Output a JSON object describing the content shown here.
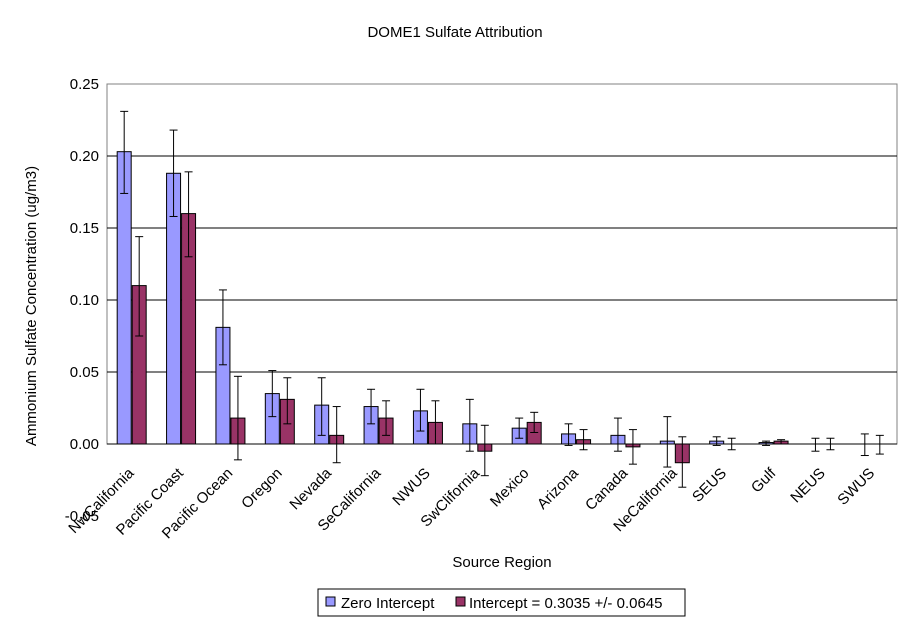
{
  "chart_data": {
    "type": "bar",
    "title": "DOME1 Sulfate Attribution",
    "xlabel": "Source Region",
    "ylabel": "Ammonium Sulfate Concentration (ug/m3)",
    "ylim": [
      -0.05,
      0.25
    ],
    "yticks": [
      "-0.05",
      "0.00",
      "0.05",
      "0.10",
      "0.15",
      "0.20",
      "0.25"
    ],
    "yticks_values": [
      -0.05,
      0.0,
      0.05,
      0.1,
      0.15,
      0.2,
      0.25
    ],
    "grid": true,
    "legend_position": "bottom",
    "categories": [
      "NwCalifornia",
      "Pacific Coast",
      "Pacific Ocean",
      "Oregon",
      "Nevada",
      "SeCalifornia",
      "NWUS",
      "SwClifornia",
      "Mexico",
      "Arizona",
      "Canada",
      "NeCalifornia",
      "SEUS",
      "Gulf",
      "NEUS",
      "SWUS"
    ],
    "series": [
      {
        "name": "Zero Intercept",
        "color": "#9999ff",
        "values": [
          0.203,
          0.188,
          0.081,
          0.035,
          0.027,
          0.026,
          0.023,
          0.014,
          0.011,
          0.007,
          0.006,
          0.002,
          0.002,
          0.001,
          0.0,
          0.0
        ],
        "err_low": [
          0.174,
          0.158,
          0.055,
          0.019,
          0.006,
          0.014,
          0.009,
          -0.005,
          0.004,
          -0.001,
          -0.005,
          -0.016,
          -0.001,
          -0.001,
          -0.005,
          -0.008
        ],
        "err_high": [
          0.231,
          0.218,
          0.107,
          0.051,
          0.046,
          0.038,
          0.038,
          0.031,
          0.018,
          0.014,
          0.018,
          0.019,
          0.005,
          0.002,
          0.004,
          0.007
        ]
      },
      {
        "name": "Intercept = 0.3035 +/- 0.0645",
        "color": "#993366",
        "values": [
          0.11,
          0.16,
          0.018,
          0.031,
          0.006,
          0.018,
          0.015,
          -0.005,
          0.015,
          0.003,
          -0.002,
          -0.013,
          0.0,
          0.002,
          0.0,
          0.0
        ],
        "err_low": [
          0.075,
          0.13,
          -0.011,
          0.014,
          -0.013,
          0.006,
          0.0,
          -0.022,
          0.008,
          -0.004,
          -0.014,
          -0.03,
          -0.004,
          0.0,
          -0.004,
          -0.007
        ],
        "err_high": [
          0.144,
          0.189,
          0.047,
          0.046,
          0.026,
          0.03,
          0.03,
          0.013,
          0.022,
          0.01,
          0.01,
          0.005,
          0.004,
          0.003,
          0.004,
          0.006
        ]
      }
    ]
  }
}
